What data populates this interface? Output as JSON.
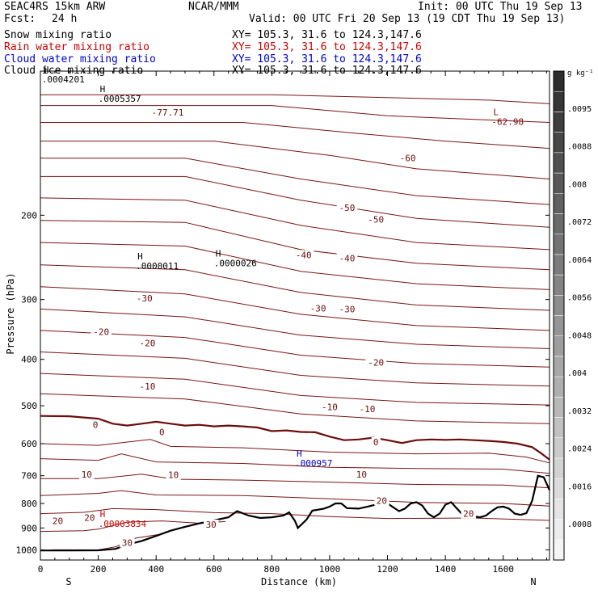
{
  "header": {
    "model": "SEAC4RS 15km ARW",
    "org": "NCAR/MMM",
    "init": "Init: 00 UTC Thu 19 Sep 13",
    "fcst_label": "Fcst:",
    "fcst_value": "24 h",
    "valid": "Valid: 00 UTC Fri 20 Sep 13 (19 CDT Thu 19 Sep 13)",
    "fields": [
      {
        "name": "Snow mixing ratio",
        "xy": "XY= 105.3, 31.6 to 124.3,147.6",
        "color": "#000000"
      },
      {
        "name": "Rain water mixing ratio",
        "xy": "XY= 105.3, 31.6 to 124.3,147.6",
        "color": "#cc0000"
      },
      {
        "name": "Cloud water mixing ratio",
        "xy": "XY= 105.3, 31.6 to 124.3,147.6",
        "color": "#0000cc"
      },
      {
        "name": "Cloud ice mixing ratio",
        "xy": "XY= 105.3, 31.6 to 124.3,147.6",
        "color": "#000000"
      }
    ]
  },
  "chart_data": {
    "type": "line",
    "xlabel": "Distance (km)",
    "ylabel": "Pressure (hPa)",
    "xlim": [
      0,
      1760
    ],
    "ylim": [
      1050,
      100
    ],
    "y_scale": "log",
    "x_ticks": [
      0,
      200,
      400,
      600,
      800,
      1000,
      1200,
      1400,
      1600
    ],
    "y_ticks": [
      200,
      300,
      400,
      500,
      600,
      700,
      800,
      900,
      1000
    ],
    "endpoints": {
      "left": "S",
      "right": "N"
    },
    "colorbar": {
      "unit": "g kg⁻¹",
      "ticks": [
        ".0008",
        ".0016",
        ".0024",
        ".0032",
        ".004",
        ".0048",
        ".0056",
        ".0064",
        ".0072",
        ".008",
        ".0088",
        ".0095"
      ]
    },
    "temperature_labels": [
      {
        "text": "-77.71",
        "x": 440,
        "p": 122
      },
      {
        "text": "-60",
        "x": 1270,
        "p": 152
      },
      {
        "text": "-50",
        "x": 1060,
        "p": 193
      },
      {
        "text": "-50",
        "x": 1160,
        "p": 204
      },
      {
        "text": "-40",
        "x": 910,
        "p": 242
      },
      {
        "text": "-40",
        "x": 1060,
        "p": 246
      },
      {
        "text": "-30",
        "x": 360,
        "p": 298
      },
      {
        "text": "-30",
        "x": 960,
        "p": 313
      },
      {
        "text": "-30",
        "x": 1060,
        "p": 314
      },
      {
        "text": "-20",
        "x": 210,
        "p": 350
      },
      {
        "text": "-20",
        "x": 370,
        "p": 370
      },
      {
        "text": "-20",
        "x": 1160,
        "p": 406
      },
      {
        "text": "-10",
        "x": 370,
        "p": 455
      },
      {
        "text": "-10",
        "x": 1000,
        "p": 503
      },
      {
        "text": "-10",
        "x": 1130,
        "p": 508
      },
      {
        "text": "0",
        "x": 190,
        "p": 548
      },
      {
        "text": "0",
        "x": 420,
        "p": 567
      },
      {
        "text": "0",
        "x": 1160,
        "p": 595
      },
      {
        "text": "10",
        "x": 160,
        "p": 695
      },
      {
        "text": "10",
        "x": 460,
        "p": 697
      },
      {
        "text": "10",
        "x": 1110,
        "p": 696
      },
      {
        "text": "20",
        "x": 1180,
        "p": 789
      },
      {
        "text": "20",
        "x": 1480,
        "p": 840
      },
      {
        "text": "20",
        "x": 60,
        "p": 870
      },
      {
        "text": "20",
        "x": 170,
        "p": 857
      },
      {
        "text": "30",
        "x": 590,
        "p": 885
      },
      {
        "text": "30",
        "x": 300,
        "p": 966
      }
    ],
    "extrema": [
      {
        "mark": "H",
        "value": ".0004201",
        "x": 5,
        "p": 102,
        "color": "#000000"
      },
      {
        "mark": "H",
        "value": ".0005357",
        "x": 200,
        "p": 112,
        "color": "#000000"
      },
      {
        "mark": "L",
        "value": "-62.98",
        "x": 1560,
        "p": 125,
        "color": "#7a1010"
      },
      {
        "mark": "H",
        "value": ".0000011",
        "x": 330,
        "p": 250,
        "color": "#000000"
      },
      {
        "mark": "H",
        "value": ".0000026",
        "x": 600,
        "p": 247,
        "color": "#000000"
      },
      {
        "mark": "H",
        "value": ".000957",
        "x": 880,
        "p": 646,
        "color": "#0000cc"
      },
      {
        "mark": "H",
        "value": ".00003834",
        "x": 200,
        "p": 865,
        "color": "#cc0000"
      }
    ],
    "freezing_level": [
      [
        0,
        525
      ],
      [
        100,
        526
      ],
      [
        200,
        532
      ],
      [
        250,
        545
      ],
      [
        300,
        550
      ],
      [
        350,
        545
      ],
      [
        400,
        540
      ],
      [
        450,
        545
      ],
      [
        500,
        550
      ],
      [
        550,
        548
      ],
      [
        600,
        552
      ],
      [
        650,
        550
      ],
      [
        700,
        552
      ],
      [
        750,
        555
      ],
      [
        800,
        565
      ],
      [
        850,
        563
      ],
      [
        900,
        567
      ],
      [
        950,
        568
      ],
      [
        1000,
        580
      ],
      [
        1050,
        590
      ],
      [
        1100,
        588
      ],
      [
        1150,
        583
      ],
      [
        1200,
        590
      ],
      [
        1250,
        598
      ],
      [
        1300,
        590
      ],
      [
        1350,
        588
      ],
      [
        1400,
        589
      ],
      [
        1450,
        588
      ],
      [
        1500,
        590
      ],
      [
        1550,
        592
      ],
      [
        1600,
        595
      ],
      [
        1650,
        600
      ],
      [
        1700,
        610
      ],
      [
        1730,
        628
      ],
      [
        1760,
        648
      ]
    ],
    "terrain": [
      [
        0,
        1003
      ],
      [
        100,
        1003
      ],
      [
        200,
        1002
      ],
      [
        260,
        995
      ],
      [
        300,
        975
      ],
      [
        350,
        958
      ],
      [
        400,
        935
      ],
      [
        450,
        912
      ],
      [
        500,
        895
      ],
      [
        550,
        880
      ],
      [
        600,
        868
      ],
      [
        650,
        855
      ],
      [
        680,
        830
      ],
      [
        720,
        848
      ],
      [
        760,
        858
      ],
      [
        800,
        855
      ],
      [
        840,
        848
      ],
      [
        860,
        835
      ],
      [
        880,
        870
      ],
      [
        890,
        900
      ],
      [
        920,
        865
      ],
      [
        940,
        828
      ],
      [
        980,
        820
      ],
      [
        1000,
        812
      ],
      [
        1020,
        800
      ],
      [
        1040,
        800
      ],
      [
        1060,
        818
      ],
      [
        1100,
        820
      ],
      [
        1140,
        810
      ],
      [
        1180,
        798
      ],
      [
        1200,
        800
      ],
      [
        1220,
        815
      ],
      [
        1240,
        830
      ],
      [
        1260,
        820
      ],
      [
        1280,
        800
      ],
      [
        1300,
        795
      ],
      [
        1320,
        808
      ],
      [
        1340,
        840
      ],
      [
        1360,
        855
      ],
      [
        1380,
        840
      ],
      [
        1400,
        805
      ],
      [
        1420,
        795
      ],
      [
        1440,
        820
      ],
      [
        1460,
        845
      ],
      [
        1480,
        850
      ],
      [
        1500,
        852
      ],
      [
        1520,
        855
      ],
      [
        1540,
        848
      ],
      [
        1560,
        830
      ],
      [
        1580,
        815
      ],
      [
        1600,
        812
      ],
      [
        1620,
        820
      ],
      [
        1640,
        840
      ],
      [
        1660,
        845
      ],
      [
        1680,
        838
      ],
      [
        1700,
        790
      ],
      [
        1720,
        700
      ],
      [
        1740,
        705
      ],
      [
        1760,
        750
      ]
    ],
    "isotherms": [
      [
        [
          0,
          112
        ],
        [
          800,
          112
        ],
        [
          1560,
          115
        ],
        [
          1760,
          117
        ]
      ],
      [
        [
          0,
          118
        ],
        [
          800,
          118
        ],
        [
          1200,
          124
        ],
        [
          1760,
          128
        ]
      ],
      [
        [
          0,
          128
        ],
        [
          700,
          128
        ],
        [
          1100,
          135
        ],
        [
          1400,
          140
        ],
        [
          1760,
          145
        ]
      ],
      [
        [
          0,
          140
        ],
        [
          600,
          140
        ],
        [
          1000,
          150
        ],
        [
          1300,
          160
        ],
        [
          1760,
          168
        ]
      ],
      [
        [
          0,
          152
        ],
        [
          500,
          152
        ],
        [
          900,
          168
        ],
        [
          1300,
          182
        ],
        [
          1760,
          190
        ]
      ],
      [
        [
          0,
          166
        ],
        [
          500,
          166
        ],
        [
          900,
          186
        ],
        [
          1300,
          203
        ],
        [
          1760,
          212
        ]
      ],
      [
        [
          0,
          184
        ],
        [
          500,
          186
        ],
        [
          900,
          210
        ],
        [
          1300,
          228
        ],
        [
          1760,
          236
        ]
      ],
      [
        [
          0,
          205
        ],
        [
          500,
          207
        ],
        [
          900,
          236
        ],
        [
          1300,
          252
        ],
        [
          1760,
          260
        ]
      ],
      [
        [
          0,
          228
        ],
        [
          500,
          232
        ],
        [
          900,
          262
        ],
        [
          1300,
          278
        ],
        [
          1760,
          286
        ]
      ],
      [
        [
          0,
          254
        ],
        [
          500,
          260
        ],
        [
          900,
          290
        ],
        [
          1300,
          308
        ],
        [
          1760,
          316
        ]
      ],
      [
        [
          0,
          282
        ],
        [
          500,
          292
        ],
        [
          900,
          322
        ],
        [
          1300,
          340
        ],
        [
          1760,
          348
        ]
      ],
      [
        [
          0,
          314
        ],
        [
          500,
          326
        ],
        [
          900,
          356
        ],
        [
          1300,
          372
        ],
        [
          1760,
          380
        ]
      ],
      [
        [
          0,
          348
        ],
        [
          500,
          360
        ],
        [
          900,
          392
        ],
        [
          1300,
          408
        ],
        [
          1760,
          415
        ]
      ],
      [
        [
          0,
          386
        ],
        [
          500,
          398
        ],
        [
          900,
          432
        ],
        [
          1300,
          448
        ],
        [
          1760,
          455
        ]
      ],
      [
        [
          0,
          428
        ],
        [
          500,
          440
        ],
        [
          900,
          476
        ],
        [
          1300,
          492
        ],
        [
          1760,
          498
        ]
      ],
      [
        [
          0,
          472
        ],
        [
          500,
          484
        ],
        [
          900,
          520
        ],
        [
          1300,
          538
        ],
        [
          1760,
          545
        ]
      ],
      [
        [
          0,
          600
        ],
        [
          200,
          605
        ],
        [
          380,
          588
        ],
        [
          450,
          608
        ],
        [
          700,
          612
        ],
        [
          1000,
          625
        ],
        [
          1300,
          630
        ],
        [
          1550,
          628
        ],
        [
          1680,
          640
        ],
        [
          1760,
          658
        ]
      ],
      [
        [
          0,
          645
        ],
        [
          200,
          650
        ],
        [
          280,
          630
        ],
        [
          400,
          655
        ],
        [
          700,
          660
        ],
        [
          1000,
          672
        ],
        [
          1300,
          676
        ],
        [
          1600,
          678
        ],
        [
          1760,
          692
        ]
      ],
      [
        [
          0,
          710
        ],
        [
          200,
          710
        ],
        [
          350,
          695
        ],
        [
          460,
          712
        ],
        [
          700,
          715
        ],
        [
          1000,
          722
        ],
        [
          1300,
          730
        ],
        [
          1600,
          732
        ],
        [
          1760,
          742
        ]
      ],
      [
        [
          0,
          770
        ],
        [
          200,
          762
        ],
        [
          280,
          752
        ],
        [
          400,
          768
        ],
        [
          700,
          770
        ],
        [
          1000,
          782
        ],
        [
          1300,
          796
        ],
        [
          1600,
          800
        ],
        [
          1760,
          810
        ]
      ],
      [
        [
          0,
          840
        ],
        [
          150,
          835
        ],
        [
          250,
          820
        ],
        [
          400,
          824
        ],
        [
          600,
          836
        ],
        [
          800,
          840
        ],
        [
          1000,
          852
        ],
        [
          1200,
          860
        ],
        [
          1500,
          858
        ],
        [
          1760,
          868
        ]
      ],
      [
        [
          0,
          915
        ],
        [
          150,
          912
        ],
        [
          200,
          905
        ],
        [
          300,
          875
        ],
        [
          420,
          870
        ],
        [
          560,
          880
        ],
        [
          640,
          872
        ]
      ],
      [
        [
          40,
          1000
        ],
        [
          200,
          1000
        ],
        [
          260,
          985
        ],
        [
          330,
          945
        ],
        [
          420,
          926
        ]
      ]
    ]
  }
}
